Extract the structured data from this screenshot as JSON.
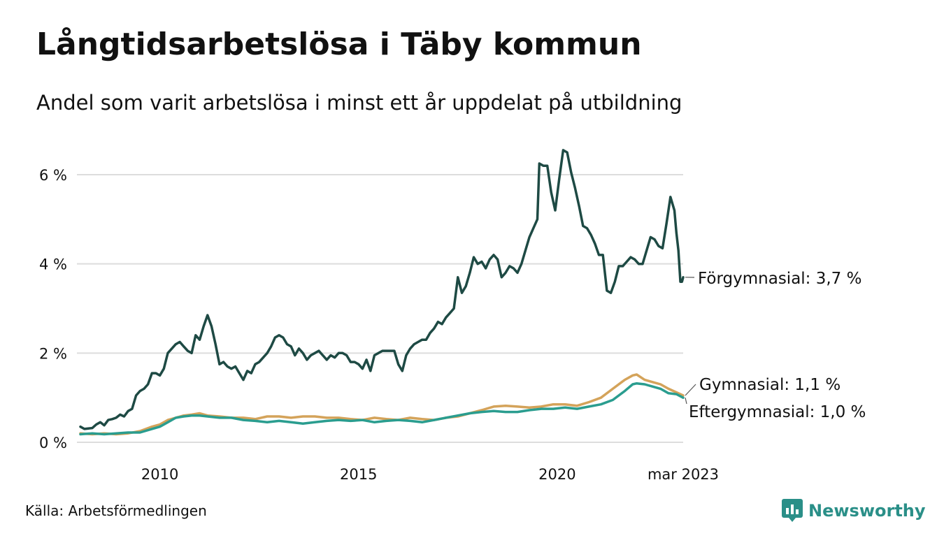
{
  "title": "Långtidsarbetslösa i Täby kommun",
  "subtitle": "Andel som varit arbetslösa i minst ett år uppdelat på utbildning",
  "source": "Källa: Arbetsförmedlingen",
  "brand": {
    "name": "Newsworthy",
    "icon": "newsworthy-logo-icon",
    "color": "#2a8f88"
  },
  "chart_data": {
    "type": "line",
    "title": "Långtidsarbetslösa i Täby kommun",
    "subtitle": "Andel som varit arbetslösa i minst ett år uppdelat på utbildning",
    "xlabel": "",
    "ylabel": "",
    "x_range": [
      2008.0,
      2023.17
    ],
    "ylim": [
      0,
      6.6
    ],
    "y_ticks": [
      {
        "value": 0,
        "label": "0 %"
      },
      {
        "value": 2,
        "label": "2 %"
      },
      {
        "value": 4,
        "label": "4 %"
      },
      {
        "value": 6,
        "label": "6 %"
      }
    ],
    "x_ticks": [
      {
        "value": 2010.0,
        "label": "2010"
      },
      {
        "value": 2015.0,
        "label": "2015"
      },
      {
        "value": 2020.0,
        "label": "2020"
      },
      {
        "value": 2023.17,
        "label": "mar 2023"
      }
    ],
    "grid": "horizontal",
    "legend": "end-labels",
    "series": [
      {
        "name": "Förgymnasial",
        "end_label": "Förgymnasial: 3,7 %",
        "color": "#1e4a44",
        "points": [
          [
            2008.0,
            0.35
          ],
          [
            2008.1,
            0.3
          ],
          [
            2008.3,
            0.32
          ],
          [
            2008.4,
            0.4
          ],
          [
            2008.5,
            0.45
          ],
          [
            2008.6,
            0.38
          ],
          [
            2008.7,
            0.5
          ],
          [
            2008.8,
            0.52
          ],
          [
            2008.9,
            0.55
          ],
          [
            2009.0,
            0.62
          ],
          [
            2009.1,
            0.58
          ],
          [
            2009.2,
            0.7
          ],
          [
            2009.3,
            0.75
          ],
          [
            2009.4,
            1.05
          ],
          [
            2009.5,
            1.15
          ],
          [
            2009.6,
            1.2
          ],
          [
            2009.7,
            1.3
          ],
          [
            2009.8,
            1.55
          ],
          [
            2009.9,
            1.55
          ],
          [
            2010.0,
            1.5
          ],
          [
            2010.1,
            1.65
          ],
          [
            2010.2,
            2.0
          ],
          [
            2010.3,
            2.1
          ],
          [
            2010.4,
            2.2
          ],
          [
            2010.5,
            2.25
          ],
          [
            2010.6,
            2.15
          ],
          [
            2010.7,
            2.05
          ],
          [
            2010.8,
            2.0
          ],
          [
            2010.9,
            2.4
          ],
          [
            2011.0,
            2.3
          ],
          [
            2011.1,
            2.6
          ],
          [
            2011.2,
            2.85
          ],
          [
            2011.3,
            2.6
          ],
          [
            2011.4,
            2.2
          ],
          [
            2011.5,
            1.75
          ],
          [
            2011.6,
            1.8
          ],
          [
            2011.7,
            1.7
          ],
          [
            2011.8,
            1.65
          ],
          [
            2011.9,
            1.7
          ],
          [
            2012.0,
            1.55
          ],
          [
            2012.1,
            1.4
          ],
          [
            2012.2,
            1.6
          ],
          [
            2012.3,
            1.55
          ],
          [
            2012.4,
            1.75
          ],
          [
            2012.5,
            1.8
          ],
          [
            2012.6,
            1.9
          ],
          [
            2012.7,
            2.0
          ],
          [
            2012.8,
            2.15
          ],
          [
            2012.9,
            2.35
          ],
          [
            2013.0,
            2.4
          ],
          [
            2013.1,
            2.35
          ],
          [
            2013.2,
            2.2
          ],
          [
            2013.3,
            2.15
          ],
          [
            2013.4,
            1.95
          ],
          [
            2013.5,
            2.1
          ],
          [
            2013.6,
            2.0
          ],
          [
            2013.7,
            1.85
          ],
          [
            2013.8,
            1.95
          ],
          [
            2013.9,
            2.0
          ],
          [
            2014.0,
            2.05
          ],
          [
            2014.1,
            1.95
          ],
          [
            2014.2,
            1.85
          ],
          [
            2014.3,
            1.95
          ],
          [
            2014.4,
            1.9
          ],
          [
            2014.5,
            2.0
          ],
          [
            2014.6,
            2.0
          ],
          [
            2014.7,
            1.95
          ],
          [
            2014.8,
            1.8
          ],
          [
            2014.9,
            1.8
          ],
          [
            2015.0,
            1.75
          ],
          [
            2015.1,
            1.65
          ],
          [
            2015.2,
            1.85
          ],
          [
            2015.3,
            1.6
          ],
          [
            2015.4,
            1.95
          ],
          [
            2015.5,
            2.0
          ],
          [
            2015.6,
            2.05
          ],
          [
            2015.7,
            2.05
          ],
          [
            2015.8,
            2.05
          ],
          [
            2015.9,
            2.05
          ],
          [
            2016.0,
            1.75
          ],
          [
            2016.1,
            1.6
          ],
          [
            2016.2,
            1.95
          ],
          [
            2016.3,
            2.1
          ],
          [
            2016.4,
            2.2
          ],
          [
            2016.5,
            2.25
          ],
          [
            2016.6,
            2.3
          ],
          [
            2016.7,
            2.3
          ],
          [
            2016.8,
            2.45
          ],
          [
            2016.9,
            2.55
          ],
          [
            2017.0,
            2.7
          ],
          [
            2017.1,
            2.65
          ],
          [
            2017.2,
            2.8
          ],
          [
            2017.3,
            2.9
          ],
          [
            2017.4,
            3.0
          ],
          [
            2017.5,
            3.7
          ],
          [
            2017.6,
            3.35
          ],
          [
            2017.7,
            3.5
          ],
          [
            2017.8,
            3.8
          ],
          [
            2017.9,
            4.15
          ],
          [
            2018.0,
            4.0
          ],
          [
            2018.1,
            4.05
          ],
          [
            2018.2,
            3.9
          ],
          [
            2018.3,
            4.1
          ],
          [
            2018.4,
            4.2
          ],
          [
            2018.5,
            4.1
          ],
          [
            2018.6,
            3.7
          ],
          [
            2018.7,
            3.8
          ],
          [
            2018.8,
            3.95
          ],
          [
            2018.9,
            3.9
          ],
          [
            2019.0,
            3.8
          ],
          [
            2019.1,
            4.0
          ],
          [
            2019.2,
            4.3
          ],
          [
            2019.3,
            4.6
          ],
          [
            2019.4,
            4.8
          ],
          [
            2019.5,
            5.0
          ],
          [
            2019.55,
            6.25
          ],
          [
            2019.65,
            6.2
          ],
          [
            2019.75,
            6.2
          ],
          [
            2019.85,
            5.6
          ],
          [
            2019.95,
            5.2
          ],
          [
            2020.05,
            5.9
          ],
          [
            2020.15,
            6.55
          ],
          [
            2020.25,
            6.5
          ],
          [
            2020.35,
            6.05
          ],
          [
            2020.45,
            5.7
          ],
          [
            2020.55,
            5.3
          ],
          [
            2020.65,
            4.85
          ],
          [
            2020.75,
            4.8
          ],
          [
            2020.85,
            4.65
          ],
          [
            2020.95,
            4.45
          ],
          [
            2021.05,
            4.2
          ],
          [
            2021.15,
            4.2
          ],
          [
            2021.25,
            3.4
          ],
          [
            2021.35,
            3.35
          ],
          [
            2021.45,
            3.6
          ],
          [
            2021.55,
            3.95
          ],
          [
            2021.65,
            3.95
          ],
          [
            2021.75,
            4.05
          ],
          [
            2021.85,
            4.15
          ],
          [
            2021.95,
            4.1
          ],
          [
            2022.05,
            4.0
          ],
          [
            2022.15,
            4.0
          ],
          [
            2022.25,
            4.3
          ],
          [
            2022.35,
            4.6
          ],
          [
            2022.45,
            4.55
          ],
          [
            2022.55,
            4.4
          ],
          [
            2022.65,
            4.35
          ],
          [
            2022.75,
            4.9
          ],
          [
            2022.85,
            5.5
          ],
          [
            2022.95,
            5.2
          ],
          [
            2023.0,
            4.7
          ],
          [
            2023.05,
            4.3
          ],
          [
            2023.1,
            3.6
          ],
          [
            2023.14,
            3.6
          ],
          [
            2023.17,
            3.7
          ]
        ]
      },
      {
        "name": "Gymnasial",
        "end_label": "Gymnasial: 1,1 %",
        "color": "#d4a35a",
        "points": [
          [
            2008.0,
            0.2
          ],
          [
            2008.3,
            0.18
          ],
          [
            2008.6,
            0.2
          ],
          [
            2008.9,
            0.18
          ],
          [
            2009.2,
            0.2
          ],
          [
            2009.5,
            0.25
          ],
          [
            2009.8,
            0.35
          ],
          [
            2010.0,
            0.4
          ],
          [
            2010.2,
            0.5
          ],
          [
            2010.4,
            0.55
          ],
          [
            2010.6,
            0.6
          ],
          [
            2010.8,
            0.62
          ],
          [
            2011.0,
            0.65
          ],
          [
            2011.2,
            0.6
          ],
          [
            2011.5,
            0.58
          ],
          [
            2011.8,
            0.55
          ],
          [
            2012.1,
            0.55
          ],
          [
            2012.4,
            0.52
          ],
          [
            2012.7,
            0.58
          ],
          [
            2013.0,
            0.58
          ],
          [
            2013.3,
            0.55
          ],
          [
            2013.6,
            0.58
          ],
          [
            2013.9,
            0.58
          ],
          [
            2014.2,
            0.55
          ],
          [
            2014.5,
            0.55
          ],
          [
            2014.8,
            0.52
          ],
          [
            2015.1,
            0.5
          ],
          [
            2015.4,
            0.55
          ],
          [
            2015.7,
            0.52
          ],
          [
            2016.0,
            0.5
          ],
          [
            2016.3,
            0.55
          ],
          [
            2016.6,
            0.52
          ],
          [
            2016.9,
            0.5
          ],
          [
            2017.2,
            0.55
          ],
          [
            2017.5,
            0.58
          ],
          [
            2017.8,
            0.65
          ],
          [
            2018.1,
            0.72
          ],
          [
            2018.4,
            0.8
          ],
          [
            2018.7,
            0.82
          ],
          [
            2019.0,
            0.8
          ],
          [
            2019.3,
            0.78
          ],
          [
            2019.6,
            0.8
          ],
          [
            2019.9,
            0.85
          ],
          [
            2020.2,
            0.85
          ],
          [
            2020.5,
            0.82
          ],
          [
            2020.8,
            0.9
          ],
          [
            2021.1,
            1.0
          ],
          [
            2021.4,
            1.2
          ],
          [
            2021.7,
            1.4
          ],
          [
            2021.9,
            1.5
          ],
          [
            2022.0,
            1.52
          ],
          [
            2022.2,
            1.4
          ],
          [
            2022.4,
            1.35
          ],
          [
            2022.6,
            1.3
          ],
          [
            2022.8,
            1.2
          ],
          [
            2023.0,
            1.12
          ],
          [
            2023.17,
            1.05
          ]
        ]
      },
      {
        "name": "Eftergymnasial",
        "end_label": "Eftergymnasial: 1,0 %",
        "color": "#2a9d8f",
        "points": [
          [
            2008.0,
            0.18
          ],
          [
            2008.3,
            0.2
          ],
          [
            2008.6,
            0.18
          ],
          [
            2008.9,
            0.2
          ],
          [
            2009.2,
            0.22
          ],
          [
            2009.5,
            0.22
          ],
          [
            2009.8,
            0.3
          ],
          [
            2010.0,
            0.35
          ],
          [
            2010.2,
            0.45
          ],
          [
            2010.4,
            0.55
          ],
          [
            2010.6,
            0.58
          ],
          [
            2010.8,
            0.6
          ],
          [
            2011.0,
            0.6
          ],
          [
            2011.2,
            0.58
          ],
          [
            2011.5,
            0.55
          ],
          [
            2011.8,
            0.55
          ],
          [
            2012.1,
            0.5
          ],
          [
            2012.4,
            0.48
          ],
          [
            2012.7,
            0.45
          ],
          [
            2013.0,
            0.48
          ],
          [
            2013.3,
            0.45
          ],
          [
            2013.6,
            0.42
          ],
          [
            2013.9,
            0.45
          ],
          [
            2014.2,
            0.48
          ],
          [
            2014.5,
            0.5
          ],
          [
            2014.8,
            0.48
          ],
          [
            2015.1,
            0.5
          ],
          [
            2015.4,
            0.45
          ],
          [
            2015.7,
            0.48
          ],
          [
            2016.0,
            0.5
          ],
          [
            2016.3,
            0.48
          ],
          [
            2016.6,
            0.45
          ],
          [
            2016.9,
            0.5
          ],
          [
            2017.2,
            0.55
          ],
          [
            2017.5,
            0.6
          ],
          [
            2017.8,
            0.65
          ],
          [
            2018.1,
            0.68
          ],
          [
            2018.4,
            0.7
          ],
          [
            2018.7,
            0.68
          ],
          [
            2019.0,
            0.68
          ],
          [
            2019.3,
            0.72
          ],
          [
            2019.6,
            0.75
          ],
          [
            2019.9,
            0.75
          ],
          [
            2020.2,
            0.78
          ],
          [
            2020.5,
            0.75
          ],
          [
            2020.8,
            0.8
          ],
          [
            2021.1,
            0.85
          ],
          [
            2021.4,
            0.95
          ],
          [
            2021.7,
            1.15
          ],
          [
            2021.9,
            1.3
          ],
          [
            2022.0,
            1.32
          ],
          [
            2022.2,
            1.3
          ],
          [
            2022.4,
            1.25
          ],
          [
            2022.6,
            1.2
          ],
          [
            2022.8,
            1.1
          ],
          [
            2023.0,
            1.08
          ],
          [
            2023.17,
            1.0
          ]
        ]
      }
    ]
  }
}
